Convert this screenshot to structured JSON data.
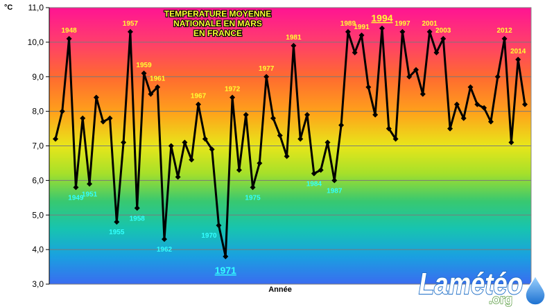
{
  "chart_data": {
    "type": "line",
    "title": [
      "TEMPERATURE MOYENNE",
      "NATIONALE EN MARS",
      "EN FRANCE"
    ],
    "xlabel": "Année",
    "ylabel": "°C",
    "ylim": [
      3.0,
      11.0
    ],
    "yticks": [
      "3,0",
      "4,0",
      "5,0",
      "6,0",
      "7,0",
      "8,0",
      "9,0",
      "10,0",
      "11,0"
    ],
    "grid": true,
    "x": [
      1946,
      1947,
      1948,
      1949,
      1950,
      1951,
      1952,
      1953,
      1954,
      1955,
      1956,
      1957,
      1958,
      1959,
      1960,
      1961,
      1962,
      1963,
      1964,
      1965,
      1966,
      1967,
      1968,
      1969,
      1970,
      1971,
      1972,
      1973,
      1974,
      1975,
      1976,
      1977,
      1978,
      1979,
      1980,
      1981,
      1982,
      1983,
      1984,
      1985,
      1986,
      1987,
      1988,
      1989,
      1990,
      1991,
      1992,
      1993,
      1994,
      1995,
      1996,
      1997,
      1998,
      1999,
      2000,
      2001,
      2002,
      2003,
      2004,
      2005,
      2006,
      2007,
      2008,
      2009,
      2010,
      2011,
      2012,
      2013,
      2014,
      2015
    ],
    "values": [
      7.2,
      8.0,
      10.1,
      5.8,
      7.8,
      5.9,
      8.4,
      7.7,
      7.8,
      4.8,
      7.1,
      10.3,
      5.2,
      9.1,
      8.5,
      8.7,
      4.3,
      7.0,
      6.1,
      7.1,
      6.6,
      8.2,
      7.2,
      6.9,
      4.7,
      3.8,
      8.4,
      6.3,
      7.9,
      5.8,
      6.5,
      9.0,
      7.8,
      7.3,
      6.7,
      9.9,
      7.2,
      7.9,
      6.2,
      6.3,
      7.1,
      6.0,
      7.6,
      10.3,
      9.7,
      10.2,
      8.7,
      7.9,
      10.4,
      7.5,
      7.2,
      10.3,
      9.0,
      9.2,
      8.5,
      10.3,
      9.7,
      10.1,
      7.5,
      8.2,
      7.8,
      8.7,
      8.2,
      8.1,
      7.7,
      9.0,
      10.1,
      7.1,
      9.5,
      8.2
    ],
    "labels_high": [
      {
        "year": 1948,
        "text": "1948"
      },
      {
        "year": 1957,
        "text": "1957"
      },
      {
        "year": 1959,
        "text": "1959"
      },
      {
        "year": 1961,
        "text": "1961"
      },
      {
        "year": 1967,
        "text": "1967"
      },
      {
        "year": 1972,
        "text": "1972"
      },
      {
        "year": 1977,
        "text": "1977"
      },
      {
        "year": 1981,
        "text": "1981"
      },
      {
        "year": 1989,
        "text": "1989"
      },
      {
        "year": 1991,
        "text": "1991"
      },
      {
        "year": 1997,
        "text": "1997"
      },
      {
        "year": 2001,
        "text": "2001"
      },
      {
        "year": 2003,
        "text": "2003"
      },
      {
        "year": 2012,
        "text": "2012"
      },
      {
        "year": 2014,
        "text": "2014"
      }
    ],
    "labels_low": [
      {
        "year": 1949,
        "text": "1949"
      },
      {
        "year": 1951,
        "text": "1951"
      },
      {
        "year": 1955,
        "text": "1955"
      },
      {
        "year": 1958,
        "text": "1958"
      },
      {
        "year": 1962,
        "text": "1962"
      },
      {
        "year": 1970,
        "text": "1970"
      },
      {
        "year": 1975,
        "text": "1975"
      },
      {
        "year": 1984,
        "text": "1984"
      },
      {
        "year": 1987,
        "text": "1987"
      }
    ],
    "record_high": {
      "year": 1994,
      "text": "1994"
    },
    "record_low": {
      "year": 1971,
      "text": "1971"
    }
  },
  "logo": {
    "main": "Lamétéo",
    "sub": ".org"
  }
}
